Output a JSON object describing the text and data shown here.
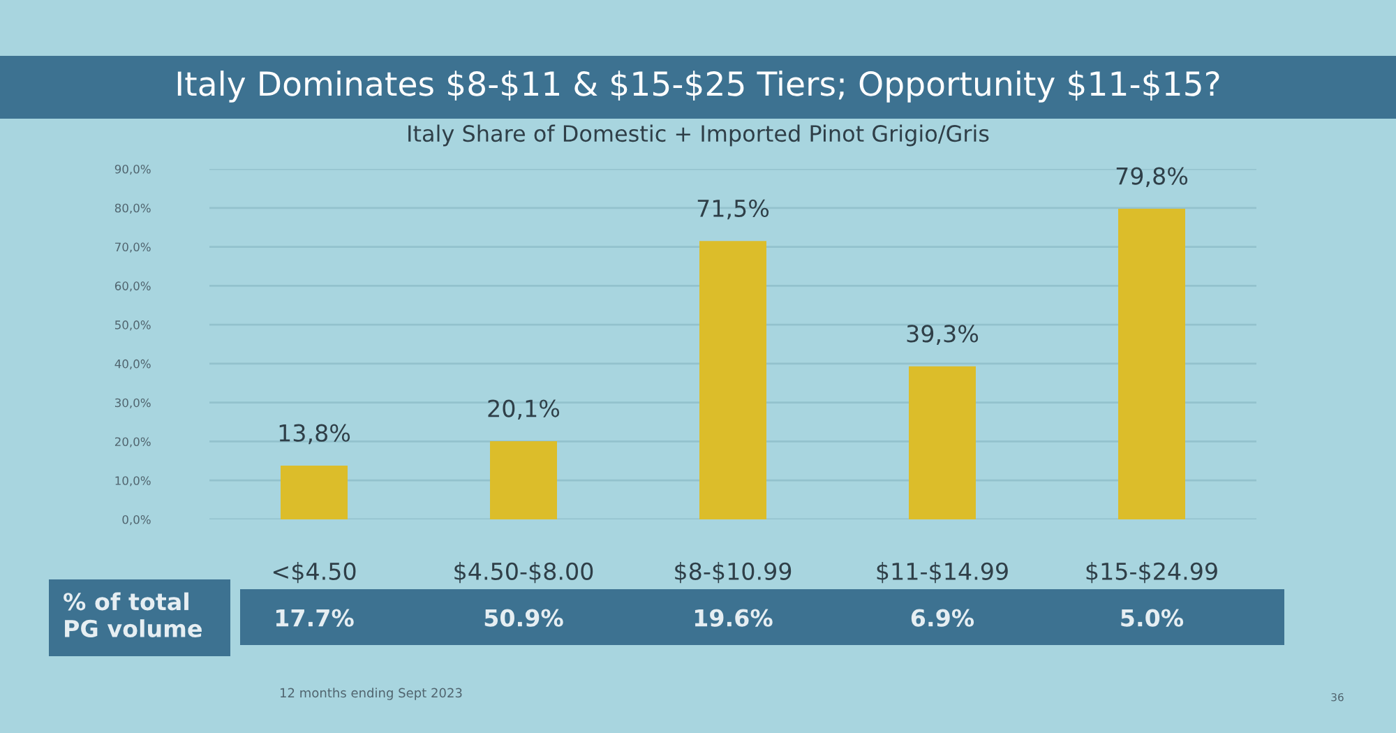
{
  "chart_data": {
    "type": "bar",
    "title": "Italy Dominates $8-$11 & $15-$25 Tiers; Opportunity $11-$15?",
    "subtitle": "Italy Share of Domestic + Imported Pinot Grigio/Gris",
    "categories": [
      "<$4.50",
      "$4.50-$8.00",
      "$8-$10.99",
      "$11-$14.99",
      "$15-$24.99"
    ],
    "values": [
      13.8,
      20.1,
      71.5,
      39.3,
      79.8
    ],
    "value_labels": [
      "13,8%",
      "20,1%",
      "71,5%",
      "39,3%",
      "79,8%"
    ],
    "color": "#dcbd2a",
    "ylim": [
      0,
      90
    ],
    "yticks": [
      {
        "value": 0,
        "label": "0,0%"
      },
      {
        "value": 10,
        "label": "10,0%"
      },
      {
        "value": 20,
        "label": "20,0%"
      },
      {
        "value": 30,
        "label": "30,0%"
      },
      {
        "value": 40,
        "label": "40,0%"
      },
      {
        "value": 50,
        "label": "50,0%"
      },
      {
        "value": 60,
        "label": "60,0%"
      },
      {
        "value": 70,
        "label": "70,0%"
      },
      {
        "value": 80,
        "label": "80,0%"
      },
      {
        "value": 90,
        "label": "90,0%"
      }
    ],
    "grid": "y",
    "annotations": [
      "% of total\nPG volume",
      "17.7%",
      "50.9%",
      "19.6%",
      "6.9%",
      "5.0%",
      "12 months ending Sept 2023",
      "36"
    ]
  }
}
